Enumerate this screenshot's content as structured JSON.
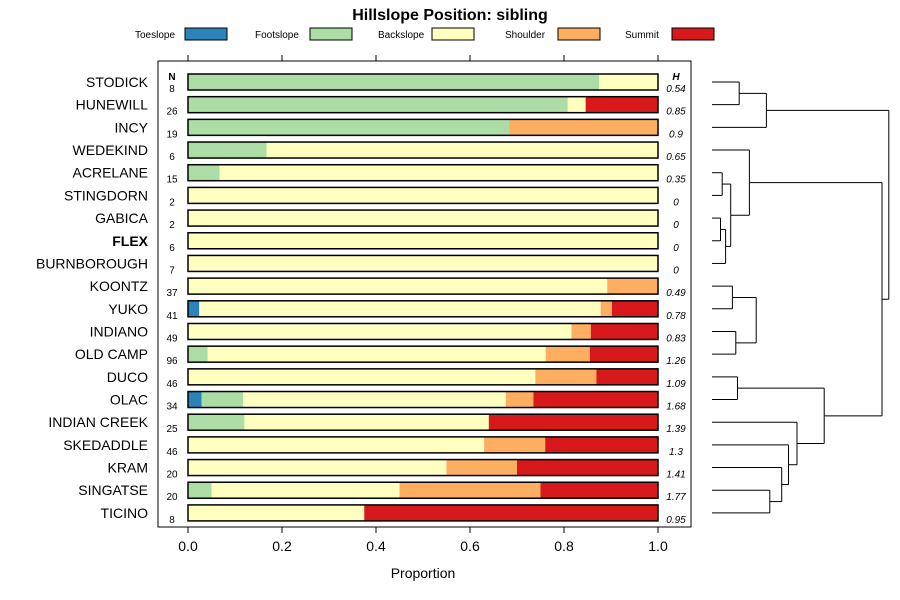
{
  "chart_data": {
    "type": "bar",
    "orientation": "horizontal",
    "stacked": true,
    "title": "Hillslope Position: sibling",
    "xlabel": "Proportion",
    "ylabel": "",
    "xlim": [
      0,
      1
    ],
    "xticks": [
      "0.0",
      "0.2",
      "0.4",
      "0.6",
      "0.8",
      "1.0"
    ],
    "legend_position": "top",
    "n_header": "N",
    "h_header": "H",
    "highlight": "FLEX",
    "series": [
      {
        "name": "Toeslope",
        "color": "#2B83BA"
      },
      {
        "name": "Footslope",
        "color": "#ABDDA4"
      },
      {
        "name": "Backslope",
        "color": "#FFFFBF"
      },
      {
        "name": "Shoulder",
        "color": "#FDAE61"
      },
      {
        "name": "Summit",
        "color": "#D7191C"
      }
    ],
    "categories": [
      {
        "label": "STODICK",
        "n": "8",
        "h": "0.54",
        "values": [
          0,
          0.875,
          0.125,
          0,
          0
        ]
      },
      {
        "label": "HUNEWILL",
        "n": "26",
        "h": "0.85",
        "values": [
          0,
          0.808,
          0.038,
          0,
          0.154
        ]
      },
      {
        "label": "INCY",
        "n": "19",
        "h": "0.9",
        "values": [
          0,
          0.684,
          0,
          0.316,
          0
        ]
      },
      {
        "label": "WEDEKIND",
        "n": "6",
        "h": "0.65",
        "values": [
          0,
          0.167,
          0.833,
          0,
          0
        ]
      },
      {
        "label": "ACRELANE",
        "n": "15",
        "h": "0.35",
        "values": [
          0,
          0.067,
          0.933,
          0,
          0
        ]
      },
      {
        "label": "STINGDORN",
        "n": "2",
        "h": "0",
        "values": [
          0,
          0,
          1,
          0,
          0
        ]
      },
      {
        "label": "GABICA",
        "n": "2",
        "h": "0",
        "values": [
          0,
          0,
          1,
          0,
          0
        ]
      },
      {
        "label": "FLEX",
        "n": "6",
        "h": "0",
        "values": [
          0,
          0,
          1,
          0,
          0
        ]
      },
      {
        "label": "BURNBOROUGH",
        "n": "7",
        "h": "0",
        "values": [
          0,
          0,
          1,
          0,
          0
        ]
      },
      {
        "label": "KOONTZ",
        "n": "37",
        "h": "0.49",
        "values": [
          0,
          0,
          0.892,
          0.108,
          0
        ]
      },
      {
        "label": "YUKO",
        "n": "41",
        "h": "0.78",
        "values": [
          0.024,
          0,
          0.854,
          0.024,
          0.098
        ]
      },
      {
        "label": "INDIANO",
        "n": "49",
        "h": "0.83",
        "values": [
          0,
          0,
          0.816,
          0.041,
          0.143
        ]
      },
      {
        "label": "OLD CAMP",
        "n": "96",
        "h": "1.26",
        "values": [
          0,
          0.042,
          0.719,
          0.094,
          0.146
        ]
      },
      {
        "label": "DUCO",
        "n": "46",
        "h": "1.09",
        "values": [
          0,
          0,
          0.739,
          0.13,
          0.131
        ]
      },
      {
        "label": "OLAC",
        "n": "34",
        "h": "1.68",
        "values": [
          0.029,
          0.088,
          0.559,
          0.059,
          0.265
        ]
      },
      {
        "label": "INDIAN CREEK",
        "n": "25",
        "h": "1.39",
        "values": [
          0,
          0.12,
          0.52,
          0,
          0.36
        ]
      },
      {
        "label": "SKEDADDLE",
        "n": "46",
        "h": "1.3",
        "values": [
          0,
          0,
          0.63,
          0.13,
          0.24
        ]
      },
      {
        "label": "KRAM",
        "n": "20",
        "h": "1.41",
        "values": [
          0,
          0,
          0.55,
          0.15,
          0.3
        ]
      },
      {
        "label": "SINGATSE",
        "n": "20",
        "h": "1.77",
        "values": [
          0,
          0.05,
          0.4,
          0.3,
          0.25
        ]
      },
      {
        "label": "TICINO",
        "n": "8",
        "h": "0.95",
        "values": [
          0,
          0,
          0.375,
          0,
          0.625
        ]
      }
    ],
    "dendrogram": [
      [
        0,
        1,
        0.8
      ],
      [
        20,
        2,
        1.6
      ],
      [
        4,
        5,
        0.3
      ],
      [
        6,
        7,
        0.25
      ],
      [
        23,
        8,
        0.4
      ],
      [
        22,
        24,
        0.55
      ],
      [
        3,
        25,
        1.1
      ],
      [
        9,
        10,
        0.6
      ],
      [
        11,
        12,
        0.7
      ],
      [
        27,
        28,
        1.3
      ],
      [
        13,
        14,
        0.75
      ],
      [
        18,
        19,
        1.7
      ],
      [
        17,
        31,
        2.05
      ],
      [
        16,
        32,
        2.25
      ],
      [
        15,
        33,
        2.5
      ],
      [
        30,
        34,
        3.3
      ],
      [
        26,
        35,
        5.0
      ],
      [
        21,
        36,
        5.2
      ]
    ]
  }
}
